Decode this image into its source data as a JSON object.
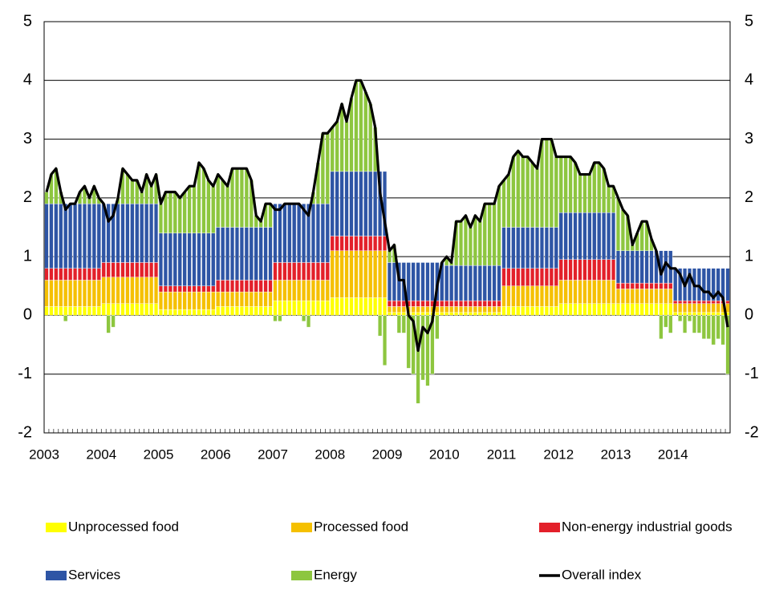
{
  "chart_data": {
    "type": "bar",
    "stacked": true,
    "categories": [
      "2003",
      null,
      null,
      null,
      null,
      null,
      null,
      null,
      null,
      null,
      null,
      null,
      "2004",
      null,
      null,
      null,
      null,
      null,
      null,
      null,
      null,
      null,
      null,
      null,
      "2005",
      null,
      null,
      null,
      null,
      null,
      null,
      null,
      null,
      null,
      null,
      null,
      "2006",
      null,
      null,
      null,
      null,
      null,
      null,
      null,
      null,
      null,
      null,
      null,
      "2007",
      null,
      null,
      null,
      null,
      null,
      null,
      null,
      null,
      null,
      null,
      null,
      "2008",
      null,
      null,
      null,
      null,
      null,
      null,
      null,
      null,
      null,
      null,
      null,
      "2009",
      null,
      null,
      null,
      null,
      null,
      null,
      null,
      null,
      null,
      null,
      null,
      "2010",
      null,
      null,
      null,
      null,
      null,
      null,
      null,
      null,
      null,
      null,
      null,
      "2011",
      null,
      null,
      null,
      null,
      null,
      null,
      null,
      null,
      null,
      null,
      null,
      "2012",
      null,
      null,
      null,
      null,
      null,
      null,
      null,
      null,
      null,
      null,
      null,
      "2013",
      null,
      null,
      null,
      null,
      null,
      null,
      null,
      null,
      null,
      null,
      null,
      "2014",
      null,
      null,
      null,
      null,
      null,
      null,
      null,
      null,
      null,
      null,
      null
    ],
    "ylim": [
      -2,
      5
    ],
    "yticks": [
      -2,
      -1,
      0,
      1,
      2,
      3,
      4,
      5
    ],
    "y2lim": [
      -2,
      5
    ],
    "y2ticks": [
      -2,
      -1,
      0,
      1,
      2,
      3,
      4,
      5
    ],
    "grid": true,
    "series": [
      {
        "name": "Unprocessed food",
        "color": "#ffff00",
        "values": [
          0.15,
          0.15,
          0.15,
          0.15,
          0.15,
          0.15,
          0.15,
          0.15,
          0.15,
          0.15,
          0.15,
          0.15,
          0.2,
          0.2,
          0.2,
          0.2,
          0.2,
          0.2,
          0.2,
          0.2,
          0.2,
          0.2,
          0.2,
          0.2,
          0.1,
          0.1,
          0.1,
          0.1,
          0.1,
          0.1,
          0.1,
          0.1,
          0.1,
          0.1,
          0.1,
          0.1,
          0.15,
          0.15,
          0.15,
          0.15,
          0.15,
          0.15,
          0.15,
          0.15,
          0.15,
          0.15,
          0.15,
          0.15,
          0.25,
          0.25,
          0.25,
          0.25,
          0.25,
          0.25,
          0.25,
          0.25,
          0.25,
          0.25,
          0.25,
          0.25,
          0.3,
          0.3,
          0.3,
          0.3,
          0.3,
          0.3,
          0.3,
          0.3,
          0.3,
          0.3,
          0.3,
          0.3,
          0.05,
          0.05,
          0.05,
          0.05,
          0.05,
          0.05,
          0.05,
          0.05,
          0.05,
          0.05,
          0.05,
          0.05,
          0.05,
          0.05,
          0.05,
          0.05,
          0.05,
          0.05,
          0.05,
          0.05,
          0.05,
          0.05,
          0.05,
          0.05,
          0.15,
          0.15,
          0.15,
          0.15,
          0.15,
          0.15,
          0.15,
          0.15,
          0.15,
          0.15,
          0.15,
          0.15,
          0.2,
          0.2,
          0.2,
          0.2,
          0.2,
          0.2,
          0.2,
          0.2,
          0.2,
          0.2,
          0.2,
          0.2,
          0.2,
          0.2,
          0.2,
          0.2,
          0.2,
          0.2,
          0.2,
          0.2,
          0.2,
          0.2,
          0.2,
          0.2,
          0.05,
          0.05,
          0.05,
          0.05,
          0.05,
          0.05,
          0.05,
          0.05,
          0.05,
          0.05,
          0.05,
          0.05
        ]
      },
      {
        "name": "Processed food",
        "color": "#f5c000",
        "values": [
          0.45,
          0.45,
          0.45,
          0.45,
          0.45,
          0.45,
          0.45,
          0.45,
          0.45,
          0.45,
          0.45,
          0.45,
          0.45,
          0.45,
          0.45,
          0.45,
          0.45,
          0.45,
          0.45,
          0.45,
          0.45,
          0.45,
          0.45,
          0.45,
          0.3,
          0.3,
          0.3,
          0.3,
          0.3,
          0.3,
          0.3,
          0.3,
          0.3,
          0.3,
          0.3,
          0.3,
          0.25,
          0.25,
          0.25,
          0.25,
          0.25,
          0.25,
          0.25,
          0.25,
          0.25,
          0.25,
          0.25,
          0.25,
          0.35,
          0.35,
          0.35,
          0.35,
          0.35,
          0.35,
          0.35,
          0.35,
          0.35,
          0.35,
          0.35,
          0.35,
          0.8,
          0.8,
          0.8,
          0.8,
          0.8,
          0.8,
          0.8,
          0.8,
          0.8,
          0.8,
          0.8,
          0.8,
          0.1,
          0.1,
          0.1,
          0.1,
          0.1,
          0.1,
          0.1,
          0.1,
          0.1,
          0.1,
          0.1,
          0.1,
          0.1,
          0.1,
          0.1,
          0.1,
          0.1,
          0.1,
          0.1,
          0.1,
          0.1,
          0.1,
          0.1,
          0.1,
          0.35,
          0.35,
          0.35,
          0.35,
          0.35,
          0.35,
          0.35,
          0.35,
          0.35,
          0.35,
          0.35,
          0.35,
          0.4,
          0.4,
          0.4,
          0.4,
          0.4,
          0.4,
          0.4,
          0.4,
          0.4,
          0.4,
          0.4,
          0.4,
          0.25,
          0.25,
          0.25,
          0.25,
          0.25,
          0.25,
          0.25,
          0.25,
          0.25,
          0.25,
          0.25,
          0.25,
          0.15,
          0.15,
          0.15,
          0.15,
          0.15,
          0.15,
          0.15,
          0.15,
          0.15,
          0.15,
          0.15,
          0.15
        ]
      },
      {
        "name": "Non-energy industrial goods",
        "color": "#e3202a",
        "values": [
          0.2,
          0.2,
          0.2,
          0.2,
          0.2,
          0.2,
          0.2,
          0.2,
          0.2,
          0.2,
          0.2,
          0.2,
          0.25,
          0.25,
          0.25,
          0.25,
          0.25,
          0.25,
          0.25,
          0.25,
          0.25,
          0.25,
          0.25,
          0.25,
          0.1,
          0.1,
          0.1,
          0.1,
          0.1,
          0.1,
          0.1,
          0.1,
          0.1,
          0.1,
          0.1,
          0.1,
          0.2,
          0.2,
          0.2,
          0.2,
          0.2,
          0.2,
          0.2,
          0.2,
          0.2,
          0.2,
          0.2,
          0.2,
          0.3,
          0.3,
          0.3,
          0.3,
          0.3,
          0.3,
          0.3,
          0.3,
          0.3,
          0.3,
          0.3,
          0.3,
          0.25,
          0.25,
          0.25,
          0.25,
          0.25,
          0.25,
          0.25,
          0.25,
          0.25,
          0.25,
          0.25,
          0.25,
          0.1,
          0.1,
          0.1,
          0.1,
          0.1,
          0.1,
          0.1,
          0.1,
          0.1,
          0.1,
          0.1,
          0.1,
          0.1,
          0.1,
          0.1,
          0.1,
          0.1,
          0.1,
          0.1,
          0.1,
          0.1,
          0.1,
          0.1,
          0.1,
          0.3,
          0.3,
          0.3,
          0.3,
          0.3,
          0.3,
          0.3,
          0.3,
          0.3,
          0.3,
          0.3,
          0.3,
          0.35,
          0.35,
          0.35,
          0.35,
          0.35,
          0.35,
          0.35,
          0.35,
          0.35,
          0.35,
          0.35,
          0.35,
          0.1,
          0.1,
          0.1,
          0.1,
          0.1,
          0.1,
          0.1,
          0.1,
          0.1,
          0.1,
          0.1,
          0.1,
          0.05,
          0.05,
          0.05,
          0.05,
          0.05,
          0.05,
          0.05,
          0.05,
          0.05,
          0.05,
          0.05,
          0.05
        ]
      },
      {
        "name": "Services",
        "color": "#2e55a5",
        "values": [
          1.1,
          1.1,
          1.1,
          1.1,
          1.1,
          1.1,
          1.1,
          1.1,
          1.1,
          1.1,
          1.1,
          1.1,
          1.0,
          1.0,
          1.0,
          1.0,
          1.0,
          1.0,
          1.0,
          1.0,
          1.0,
          1.0,
          1.0,
          1.0,
          0.9,
          0.9,
          0.9,
          0.9,
          0.9,
          0.9,
          0.9,
          0.9,
          0.9,
          0.9,
          0.9,
          0.9,
          0.9,
          0.9,
          0.9,
          0.9,
          0.9,
          0.9,
          0.9,
          0.9,
          0.9,
          0.9,
          0.9,
          0.9,
          1.0,
          1.0,
          1.0,
          1.0,
          1.0,
          1.0,
          1.0,
          1.0,
          1.0,
          1.0,
          1.0,
          1.0,
          1.1,
          1.1,
          1.1,
          1.1,
          1.1,
          1.1,
          1.1,
          1.1,
          1.1,
          1.1,
          1.1,
          1.1,
          0.65,
          0.65,
          0.65,
          0.65,
          0.65,
          0.65,
          0.65,
          0.65,
          0.65,
          0.65,
          0.65,
          0.65,
          0.6,
          0.6,
          0.6,
          0.6,
          0.6,
          0.6,
          0.6,
          0.6,
          0.6,
          0.6,
          0.6,
          0.6,
          0.7,
          0.7,
          0.7,
          0.7,
          0.7,
          0.7,
          0.7,
          0.7,
          0.7,
          0.7,
          0.7,
          0.7,
          0.8,
          0.8,
          0.8,
          0.8,
          0.8,
          0.8,
          0.8,
          0.8,
          0.8,
          0.8,
          0.8,
          0.8,
          0.55,
          0.55,
          0.55,
          0.55,
          0.55,
          0.55,
          0.55,
          0.55,
          0.55,
          0.55,
          0.55,
          0.55,
          0.55,
          0.55,
          0.55,
          0.55,
          0.55,
          0.55,
          0.55,
          0.55,
          0.55,
          0.55,
          0.55,
          0.55
        ]
      },
      {
        "name": "Energy",
        "color": "#8dc63f",
        "values": [
          0.2,
          0.5,
          0.6,
          0.2,
          -0.1,
          0,
          0,
          0.2,
          0.3,
          0.1,
          0.3,
          0.1,
          0,
          -0.3,
          -0.2,
          0.1,
          0.6,
          0.5,
          0.4,
          0.4,
          0.2,
          0.5,
          0.3,
          0.5,
          0.5,
          0.7,
          0.7,
          0.7,
          0.6,
          0.7,
          0.8,
          0.8,
          1.2,
          1.1,
          0.9,
          0.8,
          0.9,
          0.8,
          0.7,
          1.0,
          1.0,
          1.0,
          1.0,
          0.8,
          0.2,
          0.1,
          0.4,
          0.4,
          -0.1,
          -0.1,
          0,
          0,
          0,
          0,
          -0.1,
          -0.2,
          0.2,
          0.7,
          1.2,
          1.2,
          0.75,
          0.85,
          1.15,
          0.85,
          1.25,
          1.55,
          1.55,
          1.35,
          1.15,
          0.75,
          -0.35,
          -0.85,
          0.2,
          0.3,
          -0.3,
          -0.3,
          -0.9,
          -1.0,
          -1.5,
          -1.1,
          -1.2,
          -1.0,
          -0.4,
          0,
          0.15,
          0.05,
          0.75,
          0.75,
          0.85,
          0.65,
          0.85,
          0.75,
          1.05,
          1.05,
          1.05,
          1.35,
          0.8,
          0.9,
          1.2,
          1.3,
          1.2,
          1.2,
          1.1,
          1.0,
          1.5,
          1.5,
          1.5,
          1.2,
          0.95,
          0.95,
          0.95,
          0.85,
          0.65,
          0.65,
          0.65,
          0.85,
          0.85,
          0.75,
          0.45,
          0.45,
          0.9,
          0.7,
          0.6,
          0.1,
          0.3,
          0.5,
          0.5,
          0.2,
          0,
          -0.4,
          -0.2,
          -0.3,
          0,
          -0.1,
          -0.3,
          -0.1,
          -0.3,
          -0.3,
          -0.4,
          -0.4,
          -0.5,
          -0.4,
          -0.5,
          -1.0
        ]
      },
      {
        "name": "Overall index",
        "color": "#000000",
        "type": "line",
        "values": [
          2.1,
          2.4,
          2.5,
          2.1,
          1.8,
          1.9,
          1.9,
          2.1,
          2.2,
          2.0,
          2.2,
          2.0,
          1.9,
          1.6,
          1.7,
          2.0,
          2.5,
          2.4,
          2.3,
          2.3,
          2.1,
          2.4,
          2.2,
          2.4,
          1.9,
          2.1,
          2.1,
          2.1,
          2.0,
          2.1,
          2.2,
          2.2,
          2.6,
          2.5,
          2.3,
          2.2,
          2.4,
          2.3,
          2.2,
          2.5,
          2.5,
          2.5,
          2.5,
          2.3,
          1.7,
          1.6,
          1.9,
          1.9,
          1.8,
          1.8,
          1.9,
          1.9,
          1.9,
          1.9,
          1.8,
          1.7,
          2.1,
          2.6,
          3.1,
          3.1,
          3.2,
          3.3,
          3.6,
          3.3,
          3.7,
          4.0,
          4.0,
          3.8,
          3.6,
          3.2,
          2.1,
          1.6,
          1.1,
          1.2,
          0.6,
          0.6,
          0,
          -0.1,
          -0.6,
          -0.2,
          -0.3,
          -0.1,
          0.5,
          0.9,
          1.0,
          0.9,
          1.6,
          1.6,
          1.7,
          1.5,
          1.7,
          1.6,
          1.9,
          1.9,
          1.9,
          2.2,
          2.3,
          2.4,
          2.7,
          2.8,
          2.7,
          2.7,
          2.6,
          2.5,
          3.0,
          3.0,
          3.0,
          2.7,
          2.7,
          2.7,
          2.7,
          2.6,
          2.4,
          2.4,
          2.4,
          2.6,
          2.6,
          2.5,
          2.2,
          2.2,
          2.0,
          1.8,
          1.7,
          1.2,
          1.4,
          1.6,
          1.6,
          1.3,
          1.1,
          0.7,
          0.9,
          0.8,
          0.8,
          0.7,
          0.5,
          0.7,
          0.5,
          0.5,
          0.4,
          0.4,
          0.3,
          0.4,
          0.3,
          -0.2
        ]
      }
    ]
  }
}
